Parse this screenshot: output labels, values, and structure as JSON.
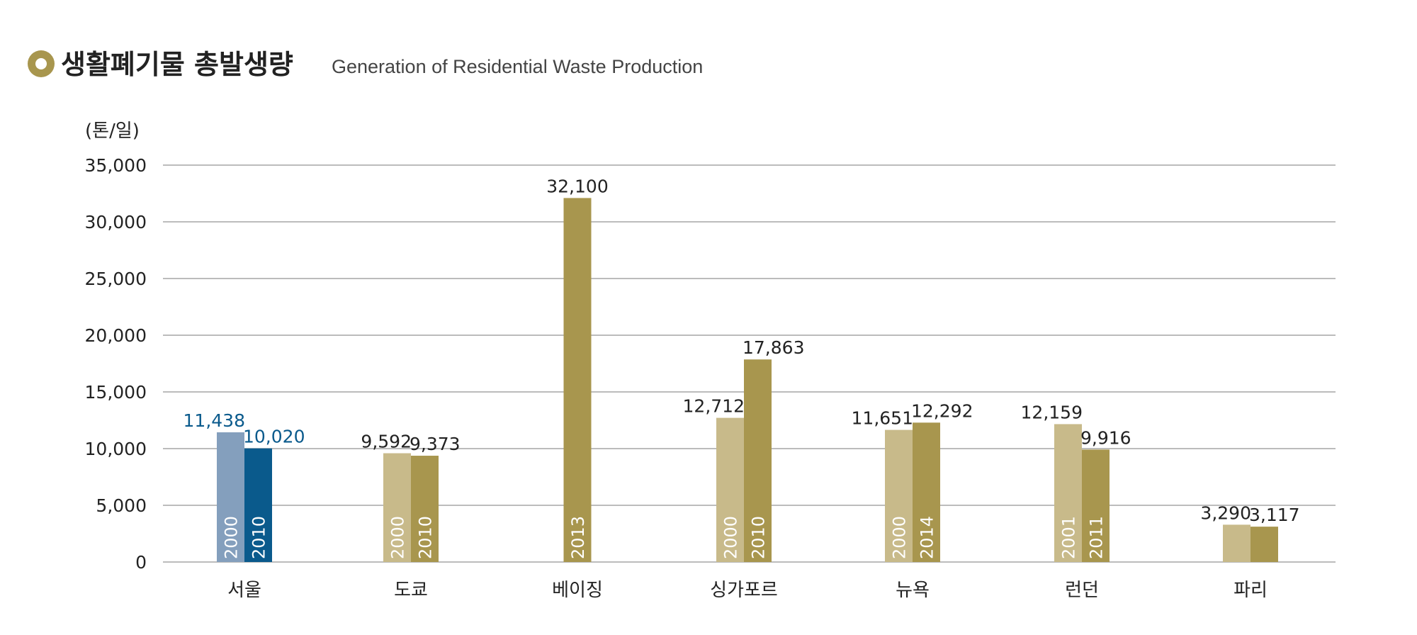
{
  "header": {
    "title": "생활폐기물 총발생량",
    "subtitle": "Generation of Residential Waste Production"
  },
  "colors": {
    "accent": "#A8964E",
    "seoul_prev": "#849FBD",
    "seoul_curr": "#0A5A8C",
    "other_prev": "#C8BA8A",
    "other_curr": "#A8964E",
    "seoul_label": "#0A5A8C",
    "grid": "#A6A6A6"
  },
  "chart_data": {
    "type": "bar",
    "title": "생활폐기물 총발생량",
    "ylabel": "(톤/일)",
    "xlabel": "",
    "ylim": [
      0,
      35000
    ],
    "yticks": [
      0,
      5000,
      10000,
      15000,
      20000,
      25000,
      30000,
      35000
    ],
    "ytick_labels": [
      "0",
      "5,000",
      "10,000",
      "15,000",
      "20,000",
      "25,000",
      "30,000",
      "35,000"
    ],
    "grid": true,
    "categories": [
      "서울",
      "도쿄",
      "베이징",
      "싱가포르",
      "뉴욕",
      "런던",
      "파리"
    ],
    "groups": [
      {
        "city": "서울",
        "bars": [
          {
            "year": "2000",
            "value": 11438,
            "label": "11,438",
            "role": "prev"
          },
          {
            "year": "2010",
            "value": 10020,
            "label": "10,020",
            "role": "curr"
          }
        ]
      },
      {
        "city": "도쿄",
        "bars": [
          {
            "year": "2000",
            "value": 9592,
            "label": "9,592",
            "role": "prev"
          },
          {
            "year": "2010",
            "value": 9373,
            "label": "9,373",
            "role": "curr"
          }
        ]
      },
      {
        "city": "베이징",
        "bars": [
          {
            "year": "2013",
            "value": 32100,
            "label": "32,100",
            "role": "curr"
          }
        ]
      },
      {
        "city": "싱가포르",
        "bars": [
          {
            "year": "2000",
            "value": 12712,
            "label": "12,712",
            "role": "prev"
          },
          {
            "year": "2010",
            "value": 17863,
            "label": "17,863",
            "role": "curr"
          }
        ]
      },
      {
        "city": "뉴욕",
        "bars": [
          {
            "year": "2000",
            "value": 11651,
            "label": "11,651",
            "role": "prev"
          },
          {
            "year": "2014",
            "value": 12292,
            "label": "12,292",
            "role": "curr"
          }
        ]
      },
      {
        "city": "런던",
        "bars": [
          {
            "year": "2001",
            "value": 12159,
            "label": "12,159",
            "role": "prev"
          },
          {
            "year": "2011",
            "value": 9916,
            "label": "9,916",
            "role": "curr"
          }
        ]
      },
      {
        "city": "파리",
        "bars": [
          {
            "year": "",
            "value": 3290,
            "label": "3,290",
            "role": "prev"
          },
          {
            "year": "",
            "value": 3117,
            "label": "3,117",
            "role": "curr"
          }
        ]
      }
    ]
  }
}
